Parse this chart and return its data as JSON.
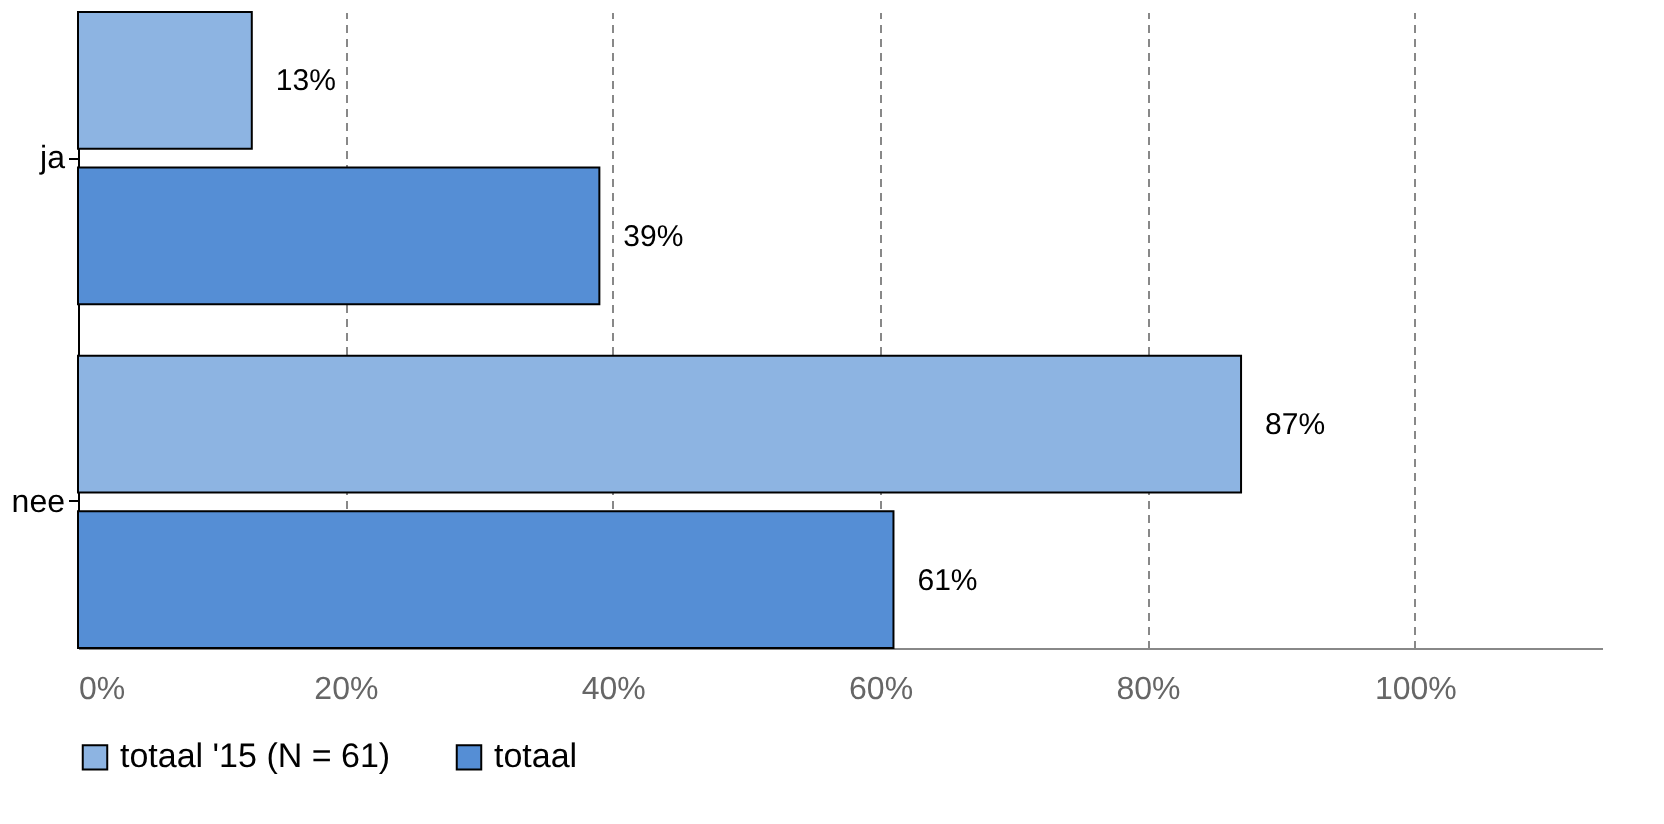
{
  "chart_data": {
    "type": "bar",
    "orientation": "horizontal",
    "categories": [
      "ja",
      "nee"
    ],
    "series": [
      {
        "name": "totaal '15 (N = 61)",
        "color": "#8db4e2",
        "values": [
          13,
          87
        ],
        "value_labels": [
          "13%",
          "87%"
        ]
      },
      {
        "name": "totaal",
        "color": "#558ed5",
        "values": [
          39,
          61
        ],
        "value_labels": [
          "39%",
          "61%"
        ]
      }
    ],
    "xlim": [
      0,
      114
    ],
    "xticks": [
      {
        "value": 0,
        "label": "0%"
      },
      {
        "value": 20,
        "label": "20%"
      },
      {
        "value": 40,
        "label": "40%"
      },
      {
        "value": 60,
        "label": "60%"
      },
      {
        "value": 80,
        "label": "80%"
      },
      {
        "value": 100,
        "label": "100%"
      }
    ],
    "grid": "x",
    "legend": "bottom"
  }
}
